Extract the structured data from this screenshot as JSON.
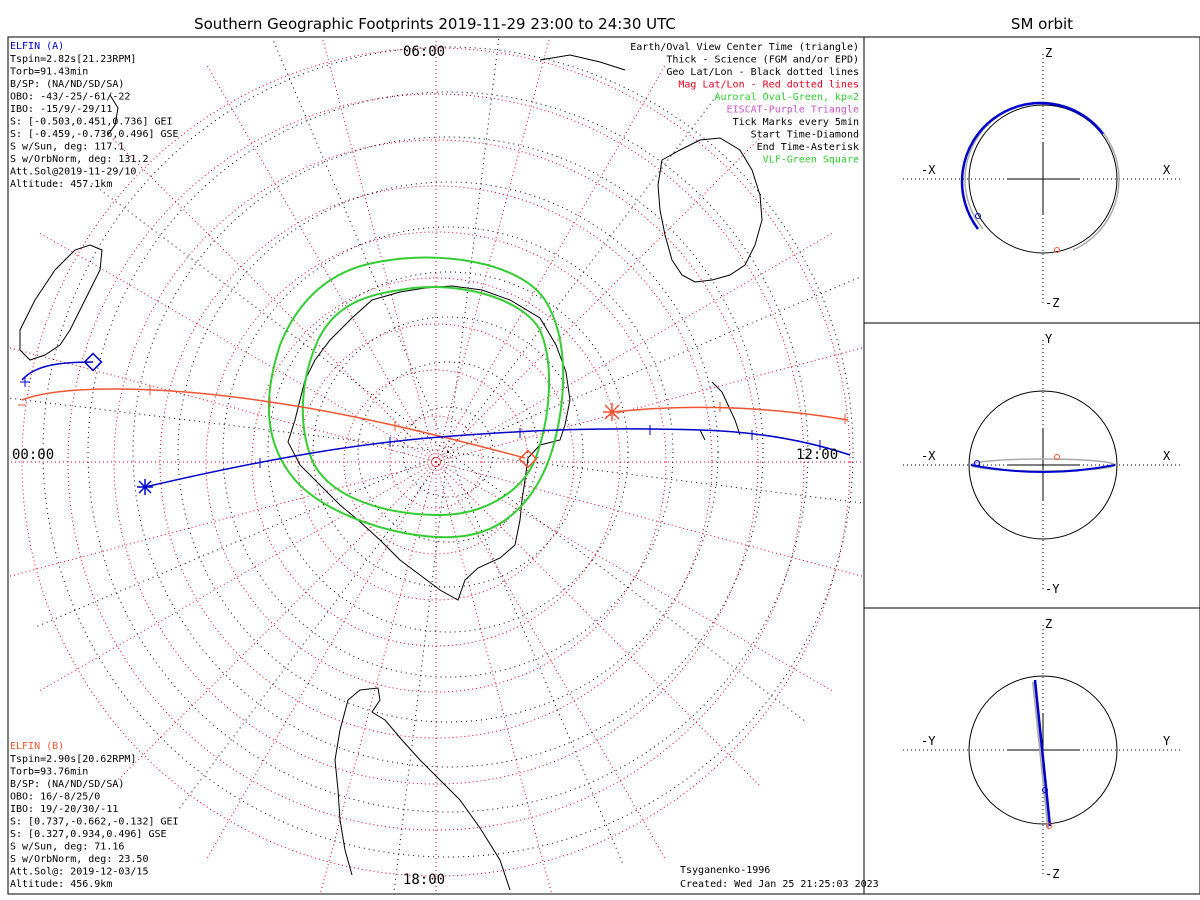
{
  "title": "Southern Geographic Footprints 2019-11-29 23:00 to 24:30 UTC",
  "orbit_title": "SM orbit",
  "elfin_a": {
    "name": "ELFIN (A)",
    "lines": [
      "Tspin=2.82s[21.23RPM]",
      "Torb=91.43min",
      "B/SP: (NA/ND/SD/SA)",
      "OBO: -43/-25/-61/-22",
      "IBO: -15/9/-29/11",
      "S: [-0.503,0.451,0.736] GEI",
      "S: [-0.459,-0.736,0.496] GSE",
      "S w/Sun, deg: 117.1",
      "S w/OrbNorm, deg: 131.2",
      "Att.Sol@2019-11-29/10",
      "Altitude: 457.1km"
    ]
  },
  "elfin_b": {
    "name": "ELFIN (B)",
    "lines": [
      "Tspin=2.90s[20.62RPM]",
      "Torb=93.76min",
      "B/SP: (NA/ND/SD/SA)",
      "OBO: 16/-8/25/0",
      "IBO: 19/-20/30/-11",
      "S: [0.737,-0.662,-0.132] GEI",
      "S: [0.327,0.934,0.496] GSE",
      "S w/Sun, deg: 71.16",
      "S w/OrbNorm, deg: 23.50",
      "Att.Sol@: 2019-12-03/15",
      "Altitude: 456.9km"
    ]
  },
  "legend": [
    {
      "text": "Earth/Oval View Center Time (triangle)",
      "color": "#000000"
    },
    {
      "text": "Thick - Science (FGM and/or EPD)",
      "color": "#000000"
    },
    {
      "text": "Geo Lat/Lon - Black dotted lines",
      "color": "#000000"
    },
    {
      "text": "Mag Lat/Lon - Red dotted lines",
      "color": "#e8001c"
    },
    {
      "text": "Auroral Oval-Green, kp=2",
      "color": "#33cc33"
    },
    {
      "text": "EISCAT-Purple Triangle",
      "color": "#cc55cc"
    },
    {
      "text": "Tick Marks every 5min",
      "color": "#000000"
    },
    {
      "text": "Start Time-Diamond",
      "color": "#000000"
    },
    {
      "text": "End Time-Asterisk",
      "color": "#000000"
    },
    {
      "text": "VLF-Green Square",
      "color": "#33cc33"
    }
  ],
  "local_time_labels": {
    "top": "06:00",
    "left": "00:00",
    "right": "12:00",
    "bottom": "18:00"
  },
  "footer": {
    "model": "Tsyganenko-1996",
    "created": "Created: Wed Jan 25 21:25:03 2023"
  },
  "panels": [
    {
      "h_neg": "-X",
      "h_pos": "X",
      "v_pos": "Z",
      "v_neg": "-Z"
    },
    {
      "h_neg": "-X",
      "h_pos": "X",
      "v_pos": "Y",
      "v_neg": "-Y"
    },
    {
      "h_neg": "-Y",
      "h_pos": "Y",
      "v_pos": "Z",
      "v_neg": "-Z"
    }
  ],
  "colors": {
    "elfin_a": "#0000cc",
    "elfin_b": "#ee5533",
    "oval": "#33cc33",
    "grid_mag": "#e8001c",
    "grid_geo": "#000000"
  },
  "chart_data": {
    "type": "polar-map",
    "projection": "southern hemisphere polar",
    "auroral_oval_kp": 2,
    "series": [
      {
        "name": "ELFIN (A)",
        "start_marker": "diamond",
        "end_marker": "asterisk"
      },
      {
        "name": "ELFIN (B)",
        "start_marker": "diamond",
        "end_marker": "asterisk"
      }
    ]
  }
}
